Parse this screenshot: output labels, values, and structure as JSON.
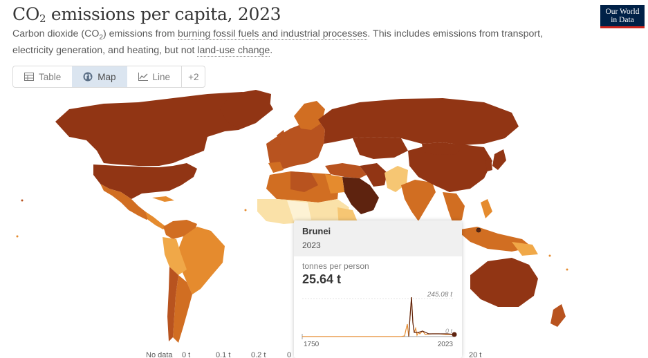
{
  "header": {
    "title_pre": "CO",
    "title_sub": "2",
    "title_post": " emissions per capita, 2023",
    "subtitle_pre": "Carbon dioxide (CO",
    "subtitle_sub": "2",
    "subtitle_mid": ") emissions from ",
    "subtitle_link1": "burning fossil fuels and industrial processes",
    "subtitle_mid2": ". This includes emissions from transport, electricity generation, and heating, but not ",
    "subtitle_link2": "land-use change",
    "subtitle_end": "."
  },
  "logo": {
    "line1": "Our World",
    "line2": "in Data"
  },
  "tabs": [
    {
      "label": "Table",
      "icon": "table-icon",
      "active": false
    },
    {
      "label": "Map",
      "icon": "globe-icon",
      "active": true
    },
    {
      "label": "Line",
      "icon": "line-chart-icon",
      "active": false
    },
    {
      "label": "+2",
      "icon": "",
      "active": false
    }
  ],
  "colors": {
    "darkest": "#5e230f",
    "very_high": "#913514",
    "high": "#b8531f",
    "mid_high": "#d16e22",
    "mid": "#e58b2e",
    "low_mid": "#f0a848",
    "low": "#f6c673",
    "very_low": "#fae1a8",
    "lowest": "#fdf2d4",
    "no_data": "#e8e8e8"
  },
  "tooltip": {
    "country": "Brunei",
    "year": "2023",
    "unit": "tonnes per person",
    "value": "25.64 t",
    "spark_max_label": "245.08 t",
    "spark_min_label": "0 t",
    "x_start": "1750",
    "x_end": "2023"
  },
  "legend": {
    "items": [
      "No data",
      "0 t",
      "0.1 t",
      "0.2 t",
      "0",
      "20 t"
    ]
  }
}
